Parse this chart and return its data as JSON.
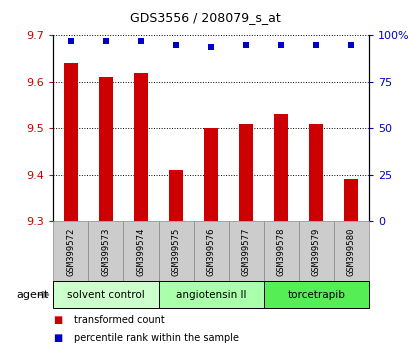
{
  "title": "GDS3556 / 208079_s_at",
  "samples": [
    "GSM399572",
    "GSM399573",
    "GSM399574",
    "GSM399575",
    "GSM399576",
    "GSM399577",
    "GSM399578",
    "GSM399579",
    "GSM399580"
  ],
  "bar_values": [
    9.64,
    9.61,
    9.62,
    9.41,
    9.5,
    9.51,
    9.53,
    9.51,
    9.39
  ],
  "percentile_values": [
    97,
    97,
    97,
    95,
    94,
    95,
    95,
    95,
    95
  ],
  "ylim_left": [
    9.3,
    9.7
  ],
  "ylim_right": [
    0,
    100
  ],
  "yticks_left": [
    9.3,
    9.4,
    9.5,
    9.6,
    9.7
  ],
  "yticks_right": [
    0,
    25,
    50,
    75,
    100
  ],
  "bar_color": "#cc0000",
  "dot_color": "#0000cc",
  "bar_bottom": 9.3,
  "agent_groups": [
    {
      "label": "solvent control",
      "start": 0,
      "end": 2,
      "color": "#ccffcc"
    },
    {
      "label": "angiotensin II",
      "start": 3,
      "end": 5,
      "color": "#aaffaa"
    },
    {
      "label": "torcetrapib",
      "start": 6,
      "end": 8,
      "color": "#55ee55"
    }
  ],
  "legend_bar_label": "transformed count",
  "legend_dot_label": "percentile rank within the sample",
  "xlabel_agent": "agent",
  "tick_label_color_left": "#cc0000",
  "tick_label_color_right": "#0000cc",
  "sample_box_color": "#cccccc",
  "sample_box_edge": "#888888"
}
